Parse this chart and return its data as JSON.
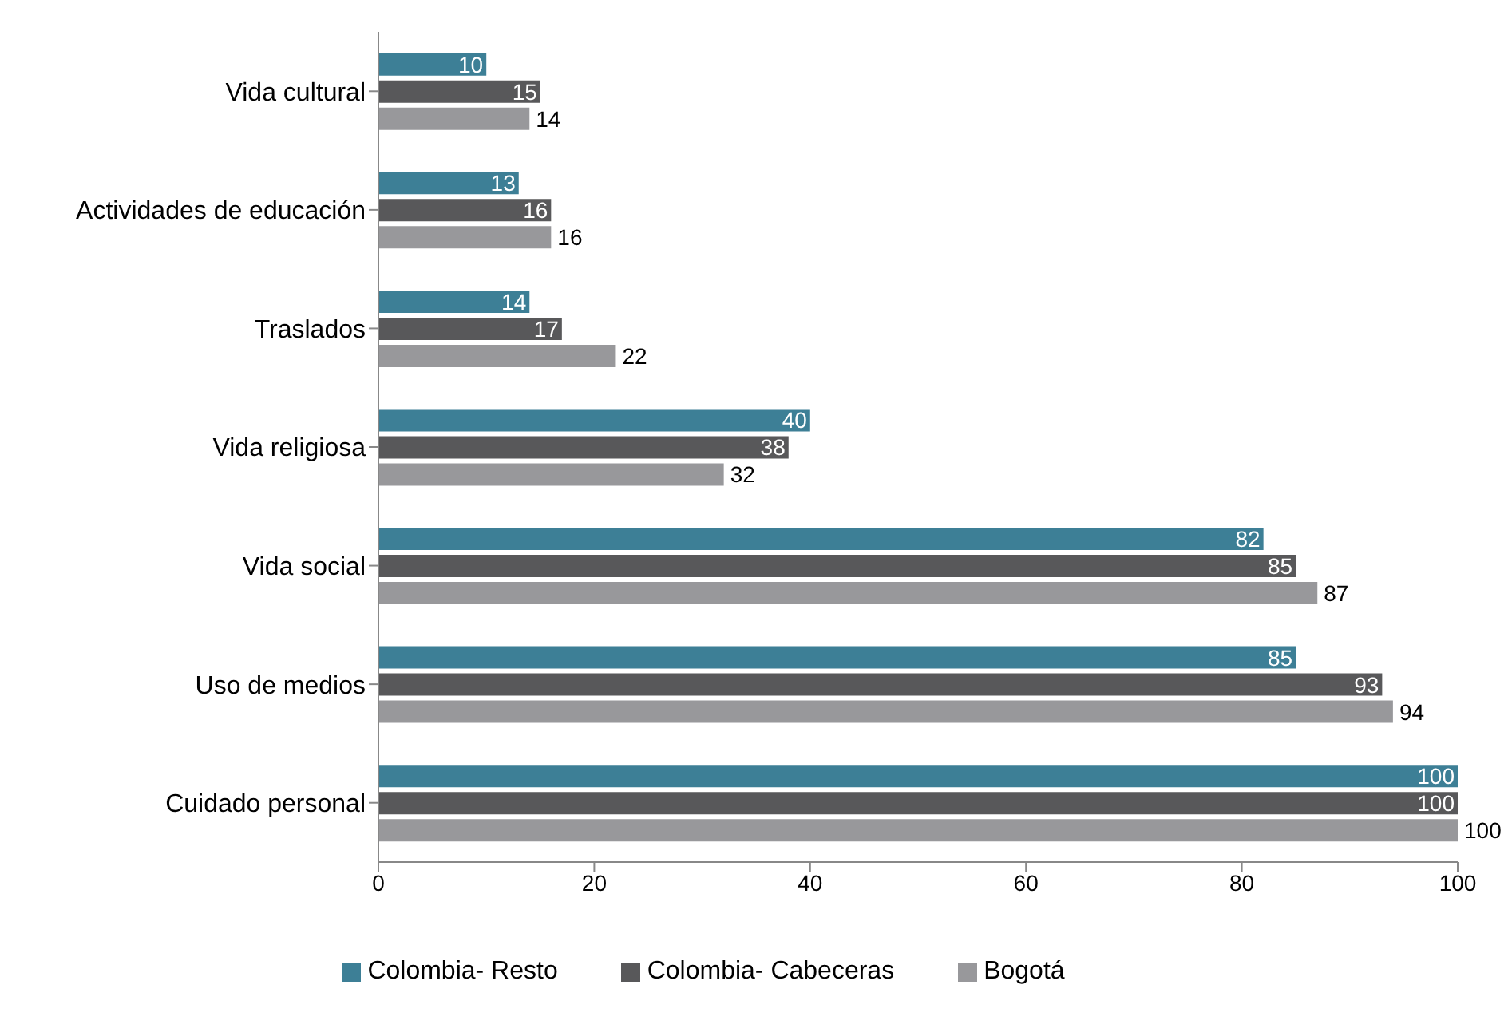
{
  "chart_data": {
    "type": "bar",
    "orientation": "horizontal",
    "categories": [
      "Vida cultural",
      "Actividades de educación",
      "Traslados",
      "Vida religiosa",
      "Vida social",
      "Uso de medios",
      "Cuidado personal"
    ],
    "series": [
      {
        "name": "Colombia- Resto",
        "color": "#3d7f96",
        "values": [
          10,
          13,
          14,
          40,
          82,
          85,
          100
        ]
      },
      {
        "name": "Colombia- Cabeceras",
        "color": "#58585a",
        "values": [
          15,
          16,
          17,
          38,
          85,
          93,
          100
        ]
      },
      {
        "name": "Bogotá",
        "color": "#98989b",
        "values": [
          14,
          16,
          22,
          32,
          87,
          94,
          100
        ]
      }
    ],
    "xlim": [
      0,
      100
    ],
    "xticks": [
      0,
      20,
      40,
      60,
      80,
      100
    ],
    "data_labels": true,
    "grid": false,
    "legend": "bottom"
  }
}
